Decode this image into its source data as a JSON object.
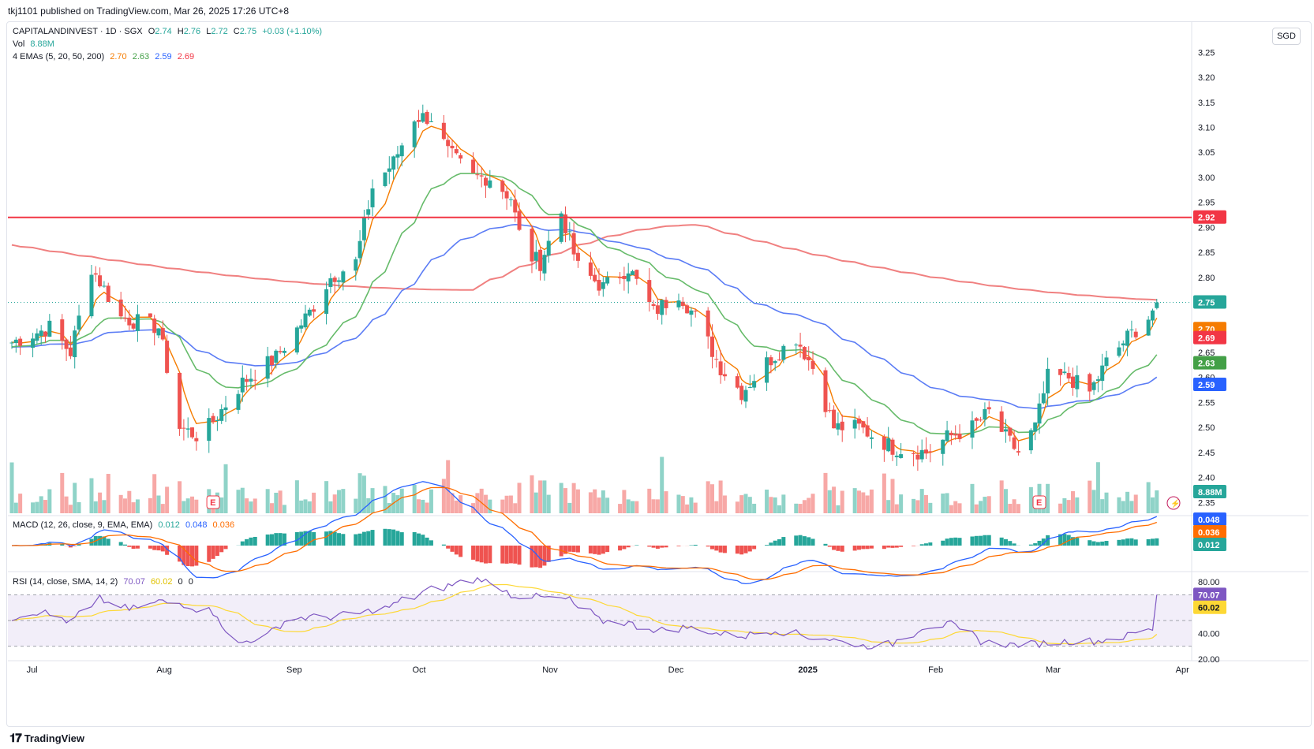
{
  "header": {
    "published_by": "tkj1101 published on TradingView.com, Mar 26, 2025 17:26 UTC+8"
  },
  "footer": {
    "brand": "TradingView",
    "logo": "tradingview-logo-icon"
  },
  "currency": "SGD",
  "symbol": {
    "name": "CAPITALANDINVEST · 1D · SGX",
    "open_label": "O",
    "open": "2.74",
    "high_label": "H",
    "high": "2.76",
    "low_label": "L",
    "low": "2.72",
    "close_label": "C",
    "close": "2.75",
    "change": "+0.03 (+1.10%)"
  },
  "volume": {
    "label": "Vol",
    "value": "8.88M",
    "badge": "8.88M"
  },
  "emas": {
    "label": "4 EMAs (5, 20, 50, 200)",
    "values": [
      "2.70",
      "2.63",
      "2.59",
      "2.69"
    ],
    "colors": [
      "#f57c00",
      "#4caf50",
      "#2962ff",
      "#f23645"
    ]
  },
  "macd": {
    "label": "MACD (12, 26, close, 9, EMA, EMA)",
    "values": [
      "0.012",
      "0.048",
      "0.036"
    ],
    "badges": [
      "0.048",
      "0.036",
      "0.012"
    ]
  },
  "rsi": {
    "label": "RSI (14, close, SMA, 14, 2)",
    "values": [
      "70.07",
      "60.02",
      "0",
      "0"
    ],
    "badges": [
      "70.07",
      "60.02"
    ]
  },
  "price_badges": {
    "resistance": "2.92",
    "last": "2.75",
    "ema5": "2.70",
    "ema200": "2.69",
    "ema20": "2.63",
    "ema50": "2.59"
  },
  "earnings_marker": "E",
  "colors": {
    "up": "#26a69a",
    "down": "#ef5350",
    "line": "#f23645",
    "ema5": "#f57c00",
    "ema20": "#66bb6a",
    "ema50": "#5b7cf5",
    "ema200": "#f08080",
    "rsi": "#7e57c2",
    "rsi_ma": "#fdd835"
  },
  "chart_data": [
    {
      "type": "candlestick",
      "title": "CAPITALANDINVEST · 1D · SGX",
      "currency": "SGD",
      "price_ticks": [
        "3.25",
        "3.20",
        "3.15",
        "3.10",
        "3.05",
        "3.00",
        "2.95",
        "2.90",
        "2.85",
        "2.80",
        "2.75",
        "2.70",
        "2.65",
        "2.60",
        "2.55",
        "2.50",
        "2.45",
        "2.40",
        "2.35"
      ],
      "date_ticks": [
        "Jul",
        "Aug",
        "Sep",
        "Oct",
        "Nov",
        "Dec",
        "2025",
        "Feb",
        "Mar",
        "Apr"
      ],
      "ylim": [
        2.33,
        3.26
      ],
      "horizontal_line": 2.92,
      "close_anchors": [
        {
          "date": "Jun 26",
          "close": 2.67
        },
        {
          "date": "Jul 5",
          "close": 2.7
        },
        {
          "date": "Jul 10",
          "close": 2.65
        },
        {
          "date": "Jul 15",
          "close": 2.82
        },
        {
          "date": "Jul 22",
          "close": 2.72
        },
        {
          "date": "Jul 31",
          "close": 2.7
        },
        {
          "date": "Aug 5",
          "close": 2.5
        },
        {
          "date": "Aug 10",
          "close": 2.48
        },
        {
          "date": "Aug 20",
          "close": 2.59
        },
        {
          "date": "Aug 28",
          "close": 2.64
        },
        {
          "date": "Sep 5",
          "close": 2.73
        },
        {
          "date": "Sep 10",
          "close": 2.8
        },
        {
          "date": "Sep 16",
          "close": 2.83
        },
        {
          "date": "Sep 20",
          "close": 2.98
        },
        {
          "date": "Sep 25",
          "close": 3.03
        },
        {
          "date": "Sep 30",
          "close": 3.12
        },
        {
          "date": "Oct 4",
          "close": 3.12
        },
        {
          "date": "Oct 8",
          "close": 3.05
        },
        {
          "date": "Oct 14",
          "close": 3.0
        },
        {
          "date": "Oct 18",
          "close": 3.0
        },
        {
          "date": "Oct 23",
          "close": 2.96
        },
        {
          "date": "Oct 26",
          "close": 2.85
        },
        {
          "date": "Oct 30",
          "close": 2.83
        },
        {
          "date": "Nov 4",
          "close": 2.93
        },
        {
          "date": "Nov 8",
          "close": 2.82
        },
        {
          "date": "Nov 14",
          "close": 2.78
        },
        {
          "date": "Nov 20",
          "close": 2.82
        },
        {
          "date": "Nov 26",
          "close": 2.73
        },
        {
          "date": "Dec 2",
          "close": 2.77
        },
        {
          "date": "Dec 6",
          "close": 2.72
        },
        {
          "date": "Dec 12",
          "close": 2.62
        },
        {
          "date": "Dec 17",
          "close": 2.57
        },
        {
          "date": "Dec 23",
          "close": 2.63
        },
        {
          "date": "Dec 30",
          "close": 2.68
        },
        {
          "date": "Jan 3",
          "close": 2.62
        },
        {
          "date": "Jan 8",
          "close": 2.5
        },
        {
          "date": "Jan 14",
          "close": 2.5
        },
        {
          "date": "Jan 22",
          "close": 2.46
        },
        {
          "date": "Jan 30",
          "close": 2.45
        },
        {
          "date": "Feb 4",
          "close": 2.48
        },
        {
          "date": "Feb 10",
          "close": 2.5
        },
        {
          "date": "Feb 14",
          "close": 2.53
        },
        {
          "date": "Feb 18",
          "close": 2.48
        },
        {
          "date": "Feb 21",
          "close": 2.45
        },
        {
          "date": "Feb 25",
          "close": 2.5
        },
        {
          "date": "Feb 28",
          "close": 2.6
        },
        {
          "date": "Mar 5",
          "close": 2.6
        },
        {
          "date": "Mar 10",
          "close": 2.57
        },
        {
          "date": "Mar 14",
          "close": 2.63
        },
        {
          "date": "Mar 19",
          "close": 2.68
        },
        {
          "date": "Mar 24",
          "close": 2.72
        },
        {
          "date": "Mar 26",
          "close": 2.75
        }
      ],
      "series": [
        {
          "name": "EMA 5",
          "last": 2.7
        },
        {
          "name": "EMA 20",
          "last": 2.63
        },
        {
          "name": "EMA 50",
          "last": 2.59
        },
        {
          "name": "EMA 200",
          "last": 2.69
        }
      ],
      "volume_last": "8.88M"
    },
    {
      "type": "line",
      "title": "MACD (12, 26, close, 9, EMA, EMA)",
      "series": [
        {
          "name": "MACD",
          "last": 0.048
        },
        {
          "name": "Signal",
          "last": 0.036
        },
        {
          "name": "Histogram",
          "last": 0.012
        }
      ]
    },
    {
      "type": "line",
      "title": "RSI (14, close, SMA, 14, 2)",
      "y_ticks": [
        "80.00",
        "40.00",
        "20.00"
      ],
      "ylim": [
        20,
        85
      ],
      "band": [
        30,
        70
      ],
      "rsi_anchors": [
        [
          0,
          52
        ],
        [
          5,
          58
        ],
        [
          10,
          48
        ],
        [
          15,
          67
        ],
        [
          20,
          58
        ],
        [
          25,
          65
        ],
        [
          30,
          62
        ],
        [
          35,
          55
        ],
        [
          38,
          32
        ],
        [
          42,
          36
        ],
        [
          48,
          52
        ],
        [
          55,
          53
        ],
        [
          60,
          56
        ],
        [
          65,
          62
        ],
        [
          70,
          72
        ],
        [
          75,
          78
        ],
        [
          80,
          83
        ],
        [
          85,
          70
        ],
        [
          90,
          68
        ],
        [
          95,
          66
        ],
        [
          100,
          50
        ],
        [
          105,
          48
        ],
        [
          110,
          42
        ],
        [
          115,
          45
        ],
        [
          120,
          40
        ],
        [
          125,
          38
        ],
        [
          130,
          43
        ],
        [
          135,
          38
        ],
        [
          140,
          35
        ],
        [
          145,
          30
        ],
        [
          150,
          32
        ],
        [
          155,
          45
        ],
        [
          160,
          47
        ],
        [
          165,
          34
        ],
        [
          170,
          31
        ],
        [
          175,
          32
        ],
        [
          180,
          34
        ],
        [
          185,
          34
        ],
        [
          190,
          38
        ],
        [
          195,
          45
        ],
        [
          200,
          48
        ],
        [
          205,
          52
        ],
        [
          210,
          62
        ],
        [
          215,
          63
        ],
        [
          220,
          60
        ],
        [
          225,
          65
        ],
        [
          230,
          68
        ],
        [
          235,
          67
        ],
        [
          237,
          70.07
        ]
      ],
      "series": [
        {
          "name": "RSI",
          "last": 70.07
        },
        {
          "name": "RSI-based MA",
          "last": 60.02
        }
      ]
    }
  ]
}
